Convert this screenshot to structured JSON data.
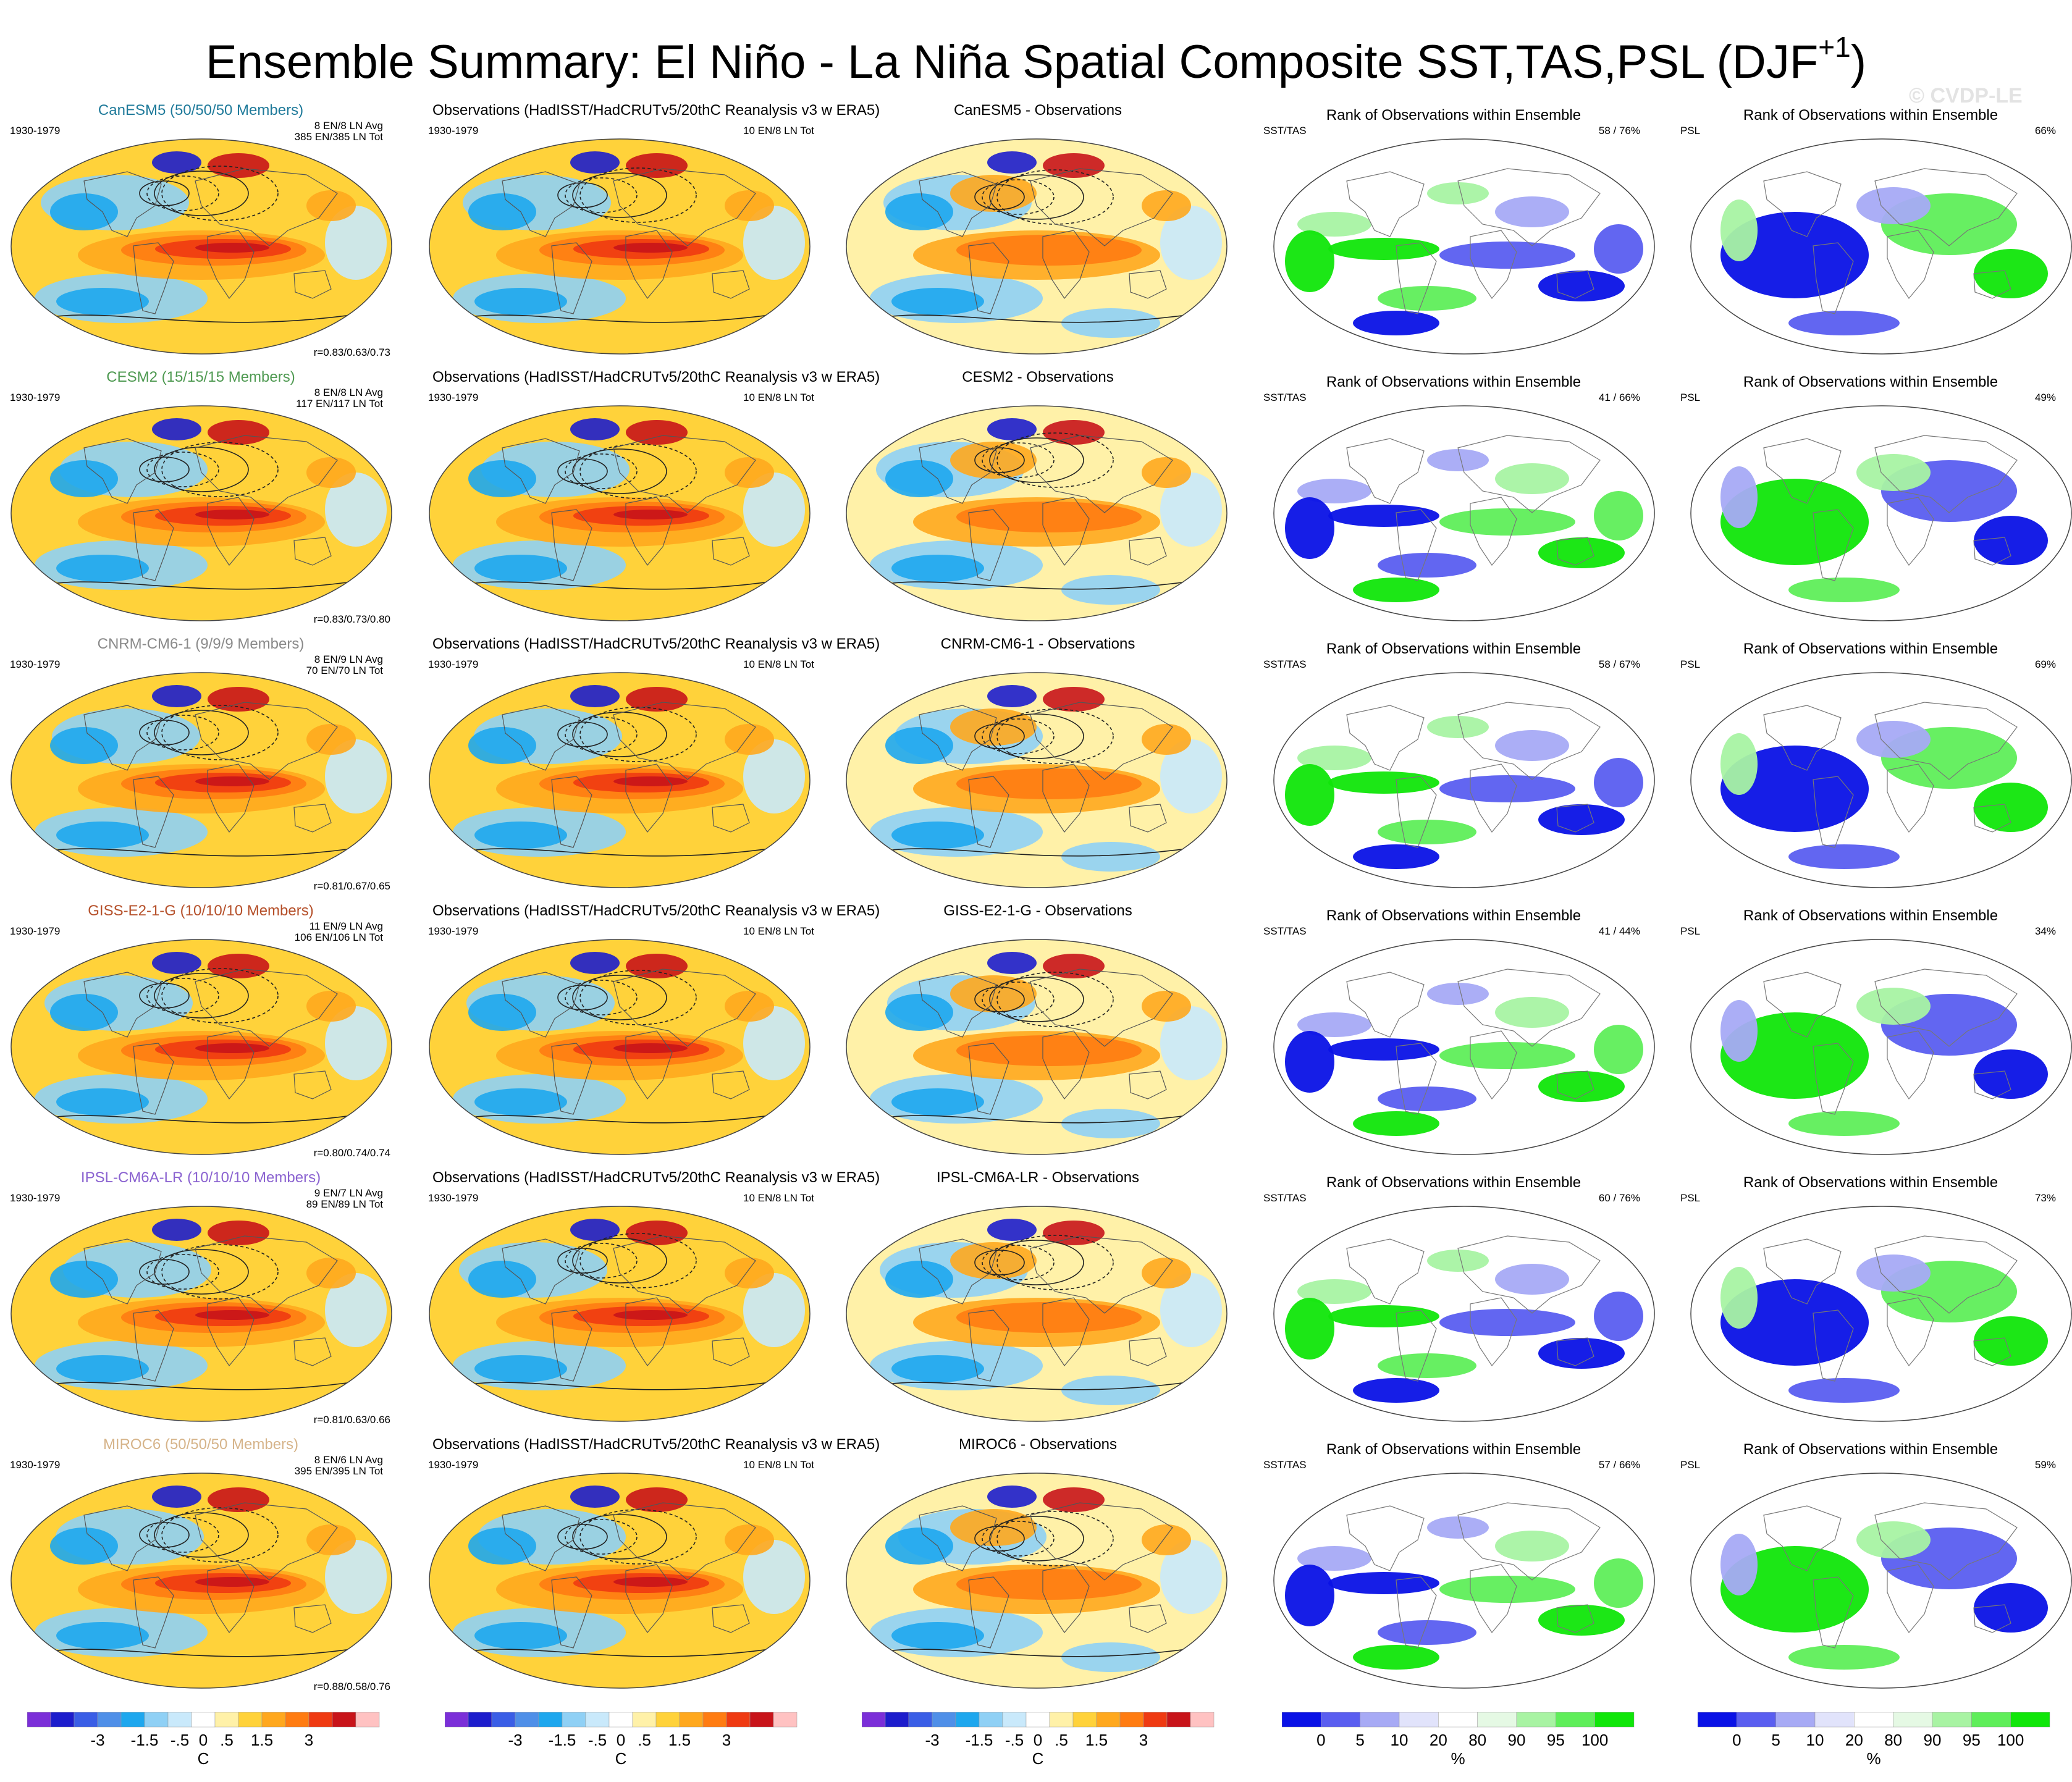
{
  "title": {
    "main": "Ensemble Summary: El Niño - La Niña Spatial Composite SST,TAS,PSL (DJF",
    "sup": "+1",
    ")": ")"
  },
  "watermark": "© CVDP-LE",
  "colors": {
    "diff": [
      "#7b2fd8",
      "#1d1dcc",
      "#3a5ee6",
      "#4f8fe8",
      "#1ea7ee",
      "#8fd0f5",
      "#c9e9fb",
      "#ffffff",
      "#fff1a8",
      "#ffd23a",
      "#ffa81e",
      "#ff7c12",
      "#ef3a12",
      "#c8141a",
      "#ffc2c2"
    ],
    "rank": [
      "#0a12e6",
      "#5a5ef0",
      "#a7aaf5",
      "#e1e3fb",
      "#ffffff",
      "#e5f9e4",
      "#a8f3a3",
      "#5fee5a",
      "#10e60a"
    ]
  },
  "rows": [
    {
      "model": "CanESM5 (50/50/50 Members)",
      "model_color": "#1f7a9a",
      "period": "1930-1979",
      "stats1": "8 EN/8 LN Avg",
      "stats2": "385 EN/385 LN Tot",
      "corr": "r=0.83/0.63/0.73",
      "obs_title": "Observations (HadISST/HadCRUTv5/20thC Reanalysis v3 w ERA5)",
      "obs_period": "1930-1979",
      "obs_stats": "10 EN/8 LN Tot",
      "diff_title": "CanESM5 - Observations",
      "rank_title_sst": "Rank of Observations within Ensemble",
      "sst_label": "SST/TAS",
      "sst_pct": "58 /  76%",
      "rank_title_psl": "Rank of Observations within Ensemble",
      "psl_label": "PSL",
      "psl_pct": "66%"
    },
    {
      "model": "CESM2 (15/15/15 Members)",
      "model_color": "#4f9a52",
      "period": "1930-1979",
      "stats1": "8 EN/8 LN Avg",
      "stats2": "117 EN/117 LN Tot",
      "corr": "r=0.83/0.73/0.80",
      "obs_title": "Observations (HadISST/HadCRUTv5/20thC Reanalysis v3 w ERA5)",
      "obs_period": "1930-1979",
      "obs_stats": "10 EN/8 LN Tot",
      "diff_title": "CESM2 - Observations",
      "rank_title_sst": "Rank of Observations within Ensemble",
      "sst_label": "SST/TAS",
      "sst_pct": "41 /  66%",
      "rank_title_psl": "Rank of Observations within Ensemble",
      "psl_label": "PSL",
      "psl_pct": "49%"
    },
    {
      "model": "CNRM-CM6-1 (9/9/9 Members)",
      "model_color": "#8a8a8a",
      "period": "1930-1979",
      "stats1": "8 EN/9 LN Avg",
      "stats2": "70 EN/70 LN Tot",
      "corr": "r=0.81/0.67/0.65",
      "obs_title": "Observations (HadISST/HadCRUTv5/20thC Reanalysis v3 w ERA5)",
      "obs_period": "1930-1979",
      "obs_stats": "10 EN/8 LN Tot",
      "diff_title": "CNRM-CM6-1 - Observations",
      "rank_title_sst": "Rank of Observations within Ensemble",
      "sst_label": "SST/TAS",
      "sst_pct": "58 /  67%",
      "rank_title_psl": "Rank of Observations within Ensemble",
      "psl_label": "PSL",
      "psl_pct": "69%"
    },
    {
      "model": "GISS-E2-1-G (10/10/10 Members)",
      "model_color": "#b5502a",
      "period": "1930-1979",
      "stats1": "11 EN/9 LN Avg",
      "stats2": "106 EN/106 LN Tot",
      "corr": "r=0.80/0.74/0.74",
      "obs_title": "Observations (HadISST/HadCRUTv5/20thC Reanalysis v3 w ERA5)",
      "obs_period": "1930-1979",
      "obs_stats": "10 EN/8 LN Tot",
      "diff_title": "GISS-E2-1-G - Observations",
      "rank_title_sst": "Rank of Observations within Ensemble",
      "sst_label": "SST/TAS",
      "sst_pct": "41 /  44%",
      "rank_title_psl": "Rank of Observations within Ensemble",
      "psl_label": "PSL",
      "psl_pct": "34%"
    },
    {
      "model": "IPSL-CM6A-LR (10/10/10 Members)",
      "model_color": "#8a62d0",
      "period": "1930-1979",
      "stats1": "9 EN/7 LN Avg",
      "stats2": "89 EN/89 LN Tot",
      "corr": "r=0.81/0.63/0.66",
      "obs_title": "Observations (HadISST/HadCRUTv5/20thC Reanalysis v3 w ERA5)",
      "obs_period": "1930-1979",
      "obs_stats": "10 EN/8 LN Tot",
      "diff_title": "IPSL-CM6A-LR - Observations",
      "rank_title_sst": "Rank of Observations within Ensemble",
      "sst_label": "SST/TAS",
      "sst_pct": "60 /  76%",
      "rank_title_psl": "Rank of Observations within Ensemble",
      "psl_label": "PSL",
      "psl_pct": "73%"
    },
    {
      "model": "MIROC6 (50/50/50 Members)",
      "model_color": "#d6b48a",
      "period": "1930-1979",
      "stats1": "8 EN/6 LN Avg",
      "stats2": "395 EN/395 LN Tot",
      "corr": "r=0.88/0.58/0.76",
      "obs_title": "Observations (HadISST/HadCRUTv5/20thC Reanalysis v3 w ERA5)",
      "obs_period": "1930-1979",
      "obs_stats": "10 EN/8 LN Tot",
      "diff_title": "MIROC6 - Observations",
      "rank_title_sst": "Rank of Observations within Ensemble",
      "sst_label": "SST/TAS",
      "sst_pct": "57 /  66%",
      "rank_title_psl": "Rank of Observations within Ensemble",
      "psl_label": "PSL",
      "psl_pct": "59%"
    }
  ],
  "chart_data": [
    {
      "type": "heatmap",
      "projection": "global map",
      "variables": [
        "SST",
        "TAS",
        "PSL"
      ],
      "colorbar": {
        "ticks": [
          "-3",
          "-1.5",
          "-.5",
          "0",
          ".5",
          "1.5",
          "3"
        ],
        "unit": "C"
      },
      "panels": [
        "model composite",
        "observations composite",
        "model - observations"
      ]
    },
    {
      "type": "heatmap",
      "projection": "global map",
      "variables": [
        "SST/TAS",
        "PSL"
      ],
      "colorbar": {
        "ticks": [
          "0",
          "5",
          "10",
          "20",
          "80",
          "90",
          "95",
          "100"
        ],
        "unit": "%"
      },
      "panels": [
        "rank of observations within ensemble (SST/TAS)",
        "rank of observations within ensemble (PSL)"
      ]
    }
  ]
}
